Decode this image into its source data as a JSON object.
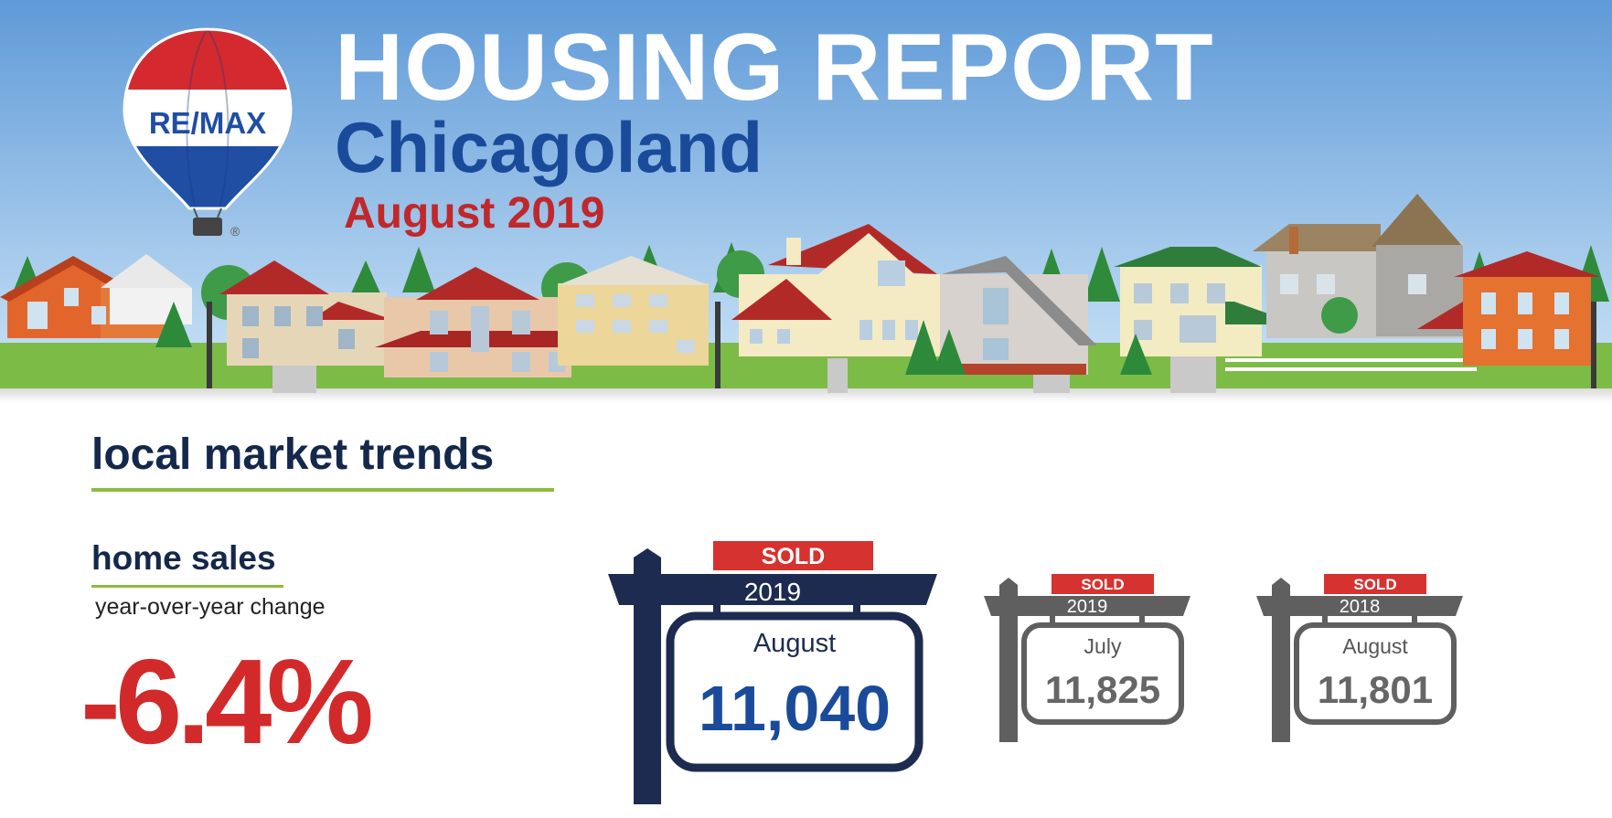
{
  "header": {
    "title": "HOUSING REPORT",
    "city": "Chicagoland",
    "date": "August 2019",
    "logo_text": "RE/MAX",
    "logo_mark": "®"
  },
  "section": {
    "title": "local market trends"
  },
  "home_sales": {
    "title": "home sales",
    "caption": "year-over-year change",
    "change": "-6.4%"
  },
  "signs": [
    {
      "sold_label": "SOLD",
      "year": "2019",
      "month": "August",
      "value": "11,040"
    },
    {
      "sold_label": "SOLD",
      "year": "2019",
      "month": "July",
      "value": "11,825"
    },
    {
      "sold_label": "SOLD",
      "year": "2018",
      "month": "August",
      "value": "11,801"
    }
  ],
  "colors": {
    "navy": "#1c2b4f",
    "blue": "#1a4b9b",
    "red": "#d22a2a",
    "gray": "#5f5f5f",
    "green": "#8dbb3e"
  }
}
